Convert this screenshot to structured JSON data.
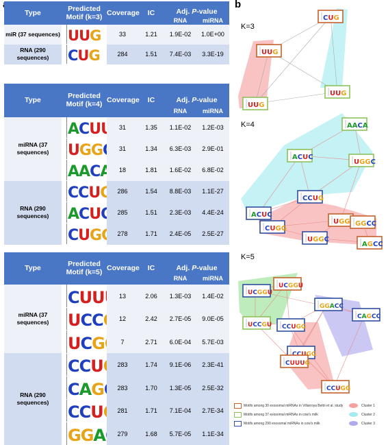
{
  "panel_a": "a",
  "panel_b": "b",
  "headers": {
    "type": "Type",
    "coverage": "Coverage",
    "ic": "IC",
    "adj_pre": "Adj. ",
    "adj_p": "P",
    "adj_post": "-value",
    "rna": "RNA",
    "mirna": "miRNA"
  },
  "tables": [
    {
      "motif_header": "Predicted Motif (k=3)",
      "groups": [
        {
          "type": "miR (37 sequences)",
          "rows": [
            {
              "motif": "UUG",
              "coverage": "33",
              "ic": "1.21",
              "rna": "1.9E-02",
              "mirna": "1.0E+00"
            }
          ]
        },
        {
          "type": "RNA (290 sequences)",
          "rows": [
            {
              "motif": "CUG",
              "coverage": "284",
              "ic": "1.51",
              "rna": "7.4E-03",
              "mirna": "3.3E-19"
            }
          ]
        }
      ]
    },
    {
      "motif_header": "Predicted Motif (k=4)",
      "groups": [
        {
          "type": "miRNA (37 sequences)",
          "rows": [
            {
              "motif": "ACUU",
              "coverage": "31",
              "ic": "1.35",
              "rna": "1.1E-02",
              "mirna": "1.2E-03"
            },
            {
              "motif": "UGGC",
              "coverage": "31",
              "ic": "1.34",
              "rna": "6.3E-03",
              "mirna": "2.9E-01"
            },
            {
              "motif": "AACA",
              "coverage": "18",
              "ic": "1.81",
              "rna": "1.6E-02",
              "mirna": "6.8E-02"
            }
          ]
        },
        {
          "type": "RNA (290 sequences)",
          "rows": [
            {
              "motif": "CCUG",
              "coverage": "286",
              "ic": "1.54",
              "rna": "8.8E-03",
              "mirna": "1.1E-27"
            },
            {
              "motif": "ACUC",
              "coverage": "285",
              "ic": "1.51",
              "rna": "2.3E-03",
              "mirna": "4.4E-24"
            },
            {
              "motif": "CUGG",
              "coverage": "278",
              "ic": "1.71",
              "rna": "2.4E-05",
              "mirna": "2.5E-27"
            }
          ]
        }
      ]
    },
    {
      "motif_header": "Predicted Motif (k=5)",
      "groups": [
        {
          "type": "miRNA (37 sequences)",
          "rows": [
            {
              "motif": "CUUUG",
              "coverage": "13",
              "ic": "2.06",
              "rna": "1.3E-03",
              "mirna": "1.4E-02"
            },
            {
              "motif": "UCCGU",
              "coverage": "12",
              "ic": "2.42",
              "rna": "2.7E-05",
              "mirna": "9.0E-05"
            },
            {
              "motif": "UCGGU",
              "coverage": "7",
              "ic": "2.71",
              "rna": "6.0E-04",
              "mirna": "5.7E-03"
            }
          ]
        },
        {
          "type": "RNA (290 sequences)",
          "rows": [
            {
              "motif": "CCUGG",
              "coverage": "283",
              "ic": "1.74",
              "rna": "9.1E-06",
              "mirna": "2.3E-41"
            },
            {
              "motif": "CAGCC",
              "coverage": "283",
              "ic": "1.70",
              "rna": "1.3E-05",
              "mirna": "2.5E-32"
            },
            {
              "motif": "CCUGG",
              "coverage": "281",
              "ic": "1.71",
              "rna": "7.1E-04",
              "mirna": "2.7E-34"
            },
            {
              "motif": "GGACC",
              "coverage": "279",
              "ic": "1.68",
              "rna": "5.7E-05",
              "mirna": "1.1E-34"
            }
          ]
        }
      ]
    }
  ],
  "networks": [
    {
      "label": "K=3",
      "nodes": [
        {
          "motif": "CUG",
          "kind": "villarroya"
        },
        {
          "motif": "UUG",
          "kind": "villarroya"
        },
        {
          "motif": "UUG",
          "kind": "cow37"
        },
        {
          "motif": "UUG",
          "kind": "cow37"
        }
      ]
    },
    {
      "label": "K=4",
      "nodes": [
        {
          "motif": "AACA",
          "kind": "cow37"
        },
        {
          "motif": "ACUC",
          "kind": "cow37"
        },
        {
          "motif": "UGGC",
          "kind": "cow37"
        },
        {
          "motif": "ACUC",
          "kind": "cow290"
        },
        {
          "motif": "CCUG",
          "kind": "cow290"
        },
        {
          "motif": "CUGG",
          "kind": "cow290"
        },
        {
          "motif": "UGGC",
          "kind": "villarroya"
        },
        {
          "motif": "GGCC",
          "kind": "villarroya"
        },
        {
          "motif": "UGGC",
          "kind": "cow290"
        },
        {
          "motif": "AGCC",
          "kind": "villarroya"
        }
      ]
    },
    {
      "label": "K=5",
      "nodes": [
        {
          "motif": "UCGGU",
          "kind": "cow290"
        },
        {
          "motif": "UCGGU",
          "kind": "villarroya"
        },
        {
          "motif": "UCCGU",
          "kind": "cow37"
        },
        {
          "motif": "CCUGG",
          "kind": "cow290"
        },
        {
          "motif": "GGACC",
          "kind": "cow290"
        },
        {
          "motif": "CAGCC",
          "kind": "cow290"
        },
        {
          "motif": "CCUGG",
          "kind": "cow290"
        },
        {
          "motif": "CCUGG",
          "kind": "villarroya"
        },
        {
          "motif": "CUUUG",
          "kind": "villarroya"
        }
      ]
    }
  ],
  "legend": {
    "villarroya": "Motifs among 30 exosomal miRNAs in Villarroya Beltri et al. study",
    "cow37": "Motifs among 37 exosomal miRNAs in cow's milk",
    "cow290": "Motifs among 290 exosomal miRNAs in cow's milk",
    "cluster1": "Cluster 1",
    "cluster2": "Cluster 2",
    "cluster3": "Cluster 3"
  },
  "colors": {
    "header_bg": "#4a76c6",
    "row_light": "#eef1f8",
    "row_dark": "#d2dcf0",
    "villarroya": "#c5602a",
    "cow37": "#8cc15a",
    "cow290": "#2e4ea0",
    "cluster1": "#f07a78",
    "cluster2": "#7fe3e7",
    "cluster3": "#8b87e6",
    "clusterG": "#6fd56a"
  },
  "icons": [
    "sequence-logo-icon"
  ]
}
